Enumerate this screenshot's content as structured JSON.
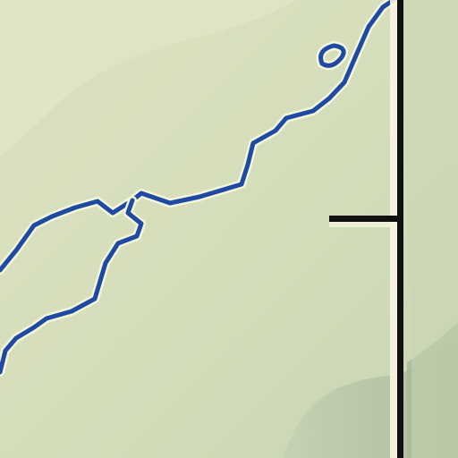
{
  "map": {
    "colors": {
      "terrain_light": "#dfe6c6",
      "terrain_mid": "#d1dbb8",
      "terrain_shadow": "#b9c9aa",
      "terrain_deep_shadow": "#a9bb9b",
      "river": "#1f4aa3",
      "river_outline": "#f3f6d8",
      "boundary": "#111111",
      "boundary_highlight": "#f7f4e0"
    },
    "features": {
      "rivers": [
        "river-main",
        "river-lower-branch",
        "river-small-loop"
      ],
      "boundary": "vertical-boundary-line",
      "boundary_tick": "boundary-tick"
    }
  }
}
